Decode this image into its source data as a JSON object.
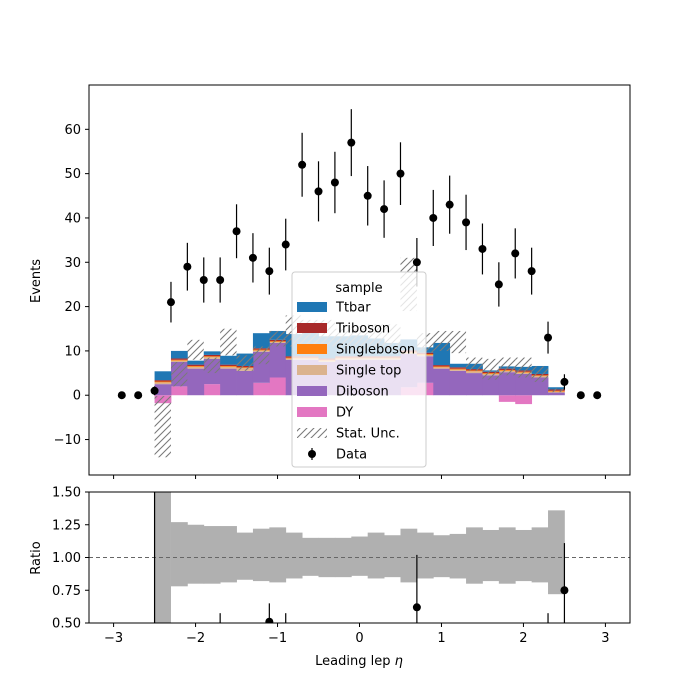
{
  "chart_data": {
    "type": "bar",
    "xlabel_main": "Leading lep ",
    "xlabel_symbol": "η",
    "ylabel_top": "Events",
    "ylabel_bottom": "Ratio",
    "xlim": [
      -3.3,
      3.3
    ],
    "ylim_top": [
      -18,
      70
    ],
    "ylim_bottom": [
      0.5,
      1.5
    ],
    "xticks": [
      "−3",
      "−2",
      "−1",
      "0",
      "1",
      "2",
      "3"
    ],
    "xtick_values": [
      -3,
      -2,
      -1,
      0,
      1,
      2,
      3
    ],
    "yticks_top": [
      "−10",
      "0",
      "10",
      "20",
      "30",
      "40",
      "50",
      "60"
    ],
    "ytick_values_top": [
      -10,
      0,
      10,
      20,
      30,
      40,
      50,
      60
    ],
    "yticks_bottom": [
      "0.50",
      "0.75",
      "1.00",
      "1.25",
      "1.50"
    ],
    "ytick_values_bottom": [
      0.5,
      0.75,
      1.0,
      1.25,
      1.5
    ],
    "bin_edges": [
      -2.5,
      -2.3,
      -2.1,
      -1.9,
      -1.7,
      -1.5,
      -1.3,
      -1.1,
      -0.9,
      -0.7,
      -0.5,
      -0.3,
      -0.1,
      0.1,
      0.3,
      0.5,
      0.7,
      0.9,
      1.1,
      1.3,
      1.5,
      1.7,
      1.9,
      2.1,
      2.3,
      2.5
    ],
    "series": [
      {
        "name": "DY",
        "color": "#e377c2",
        "values": [
          -1.8,
          2.0,
          0.0,
          2.5,
          0.0,
          0.0,
          2.8,
          4.0,
          0.0,
          0.0,
          0.0,
          0.0,
          0.0,
          0.0,
          0.0,
          1.8,
          2.8,
          0.0,
          0.0,
          0.0,
          0.0,
          -1.5,
          -2.0,
          0.0,
          0.0
        ]
      },
      {
        "name": "Diboson",
        "color": "#9467bd",
        "values": [
          2.5,
          5.5,
          6.0,
          5.7,
          6.0,
          5.5,
          7.0,
          7.8,
          8.0,
          8.0,
          7.5,
          8.0,
          8.0,
          8.0,
          8.0,
          7.5,
          6.0,
          6.0,
          5.5,
          5.0,
          4.5,
          5.2,
          4.8,
          4.0,
          0.6
        ]
      },
      {
        "name": "Single top",
        "color": "#dbb38e",
        "values": [
          0.4,
          0.3,
          0.4,
          0.4,
          0.4,
          0.6,
          0.3,
          0.2,
          0.3,
          0.3,
          0.3,
          0.3,
          0.3,
          0.3,
          0.3,
          0.3,
          0.3,
          0.3,
          0.3,
          0.4,
          0.3,
          0.3,
          0.3,
          0.3,
          0.2
        ]
      },
      {
        "name": "Singleboson",
        "color": "#ff7f0e",
        "values": [
          0.2,
          0.2,
          0.2,
          0.2,
          0.2,
          0.2,
          0.2,
          0.2,
          0.2,
          0.2,
          0.2,
          0.2,
          0.2,
          0.2,
          0.2,
          0.2,
          0.2,
          0.2,
          0.2,
          0.2,
          0.2,
          0.2,
          0.2,
          0.2,
          0.2
        ]
      },
      {
        "name": "Triboson",
        "color": "#a82a2a",
        "values": [
          0.3,
          0.3,
          0.3,
          0.3,
          0.3,
          0.3,
          0.3,
          0.3,
          0.3,
          0.3,
          0.3,
          0.3,
          0.3,
          0.3,
          0.3,
          0.3,
          0.3,
          0.3,
          0.3,
          0.3,
          0.3,
          0.3,
          0.3,
          0.3,
          0.3
        ]
      },
      {
        "name": "Ttbar",
        "color": "#1f77b4",
        "values": [
          2.0,
          1.7,
          0.9,
          0.8,
          2.0,
          2.8,
          3.4,
          2.0,
          5.0,
          5.5,
          5.0,
          4.5,
          4.7,
          4.0,
          3.0,
          2.5,
          1.2,
          5.0,
          0.8,
          1.2,
          0.3,
          0.5,
          0.8,
          1.8,
          0.5
        ]
      }
    ],
    "stat_unc": {
      "name": "Stat. Unc.",
      "up": [
        -0.2,
        7.5,
        12.5,
        8.5,
        15.0,
        9.0,
        11.0,
        14.5,
        18.0,
        17.0,
        17.0,
        15.0,
        15.5,
        16.0,
        16.0,
        31.0,
        14.0,
        14.5,
        14.5,
        8.5,
        8.2,
        8.5,
        8.5,
        6.5,
        1.5
      ],
      "down": [
        -14.0,
        2.0,
        8.0,
        5.0,
        9.0,
        5.5,
        7.0,
        11.0,
        11.0,
        11.5,
        11.0,
        10.5,
        10.0,
        11.0,
        10.0,
        19.0,
        9.5,
        10.0,
        9.5,
        5.5,
        3.5,
        4.5,
        4.0,
        3.0,
        0.7
      ]
    },
    "data": {
      "name": "Data",
      "x": [
        -2.9,
        -2.7,
        -2.5,
        -2.3,
        -2.1,
        -1.9,
        -1.7,
        -1.5,
        -1.3,
        -1.1,
        -0.9,
        -0.7,
        -0.5,
        -0.3,
        -0.1,
        0.1,
        0.3,
        0.5,
        0.7,
        0.9,
        1.1,
        1.3,
        1.5,
        1.7,
        1.9,
        2.1,
        2.3,
        2.5,
        2.7,
        2.9
      ],
      "y": [
        0,
        0,
        1,
        21,
        29,
        26,
        26,
        37,
        31,
        28,
        34,
        52,
        46,
        48,
        57,
        45,
        42,
        50,
        30,
        40,
        43,
        39,
        33,
        25,
        32,
        28,
        13,
        3,
        0,
        0
      ]
    },
    "ratio_band": {
      "up": [
        null,
        1.27,
        1.25,
        1.24,
        1.24,
        1.19,
        1.22,
        1.23,
        1.19,
        1.15,
        1.15,
        1.15,
        1.16,
        1.19,
        1.17,
        1.22,
        1.19,
        1.17,
        1.18,
        1.23,
        1.21,
        1.23,
        1.21,
        1.23,
        1.36
      ],
      "down": [
        null,
        0.78,
        0.8,
        0.8,
        0.81,
        0.83,
        0.82,
        0.81,
        0.84,
        0.86,
        0.85,
        0.85,
        0.86,
        0.84,
        0.85,
        0.81,
        0.84,
        0.85,
        0.84,
        0.8,
        0.82,
        0.8,
        0.82,
        0.81,
        0.72
      ]
    },
    "ratio_points": {
      "x": [
        -1.1,
        0.7,
        2.5
      ],
      "y": [
        0.51,
        0.62,
        0.75
      ],
      "err": [
        0.14,
        0.4,
        0.36
      ]
    },
    "reference_line": 1.0,
    "legend": {
      "title": "sample",
      "placement": "center-bottom",
      "entries": [
        "Ttbar",
        "Triboson",
        "Singleboson",
        "Single top",
        "Diboson",
        "DY",
        "Stat. Unc.",
        "Data"
      ]
    }
  }
}
